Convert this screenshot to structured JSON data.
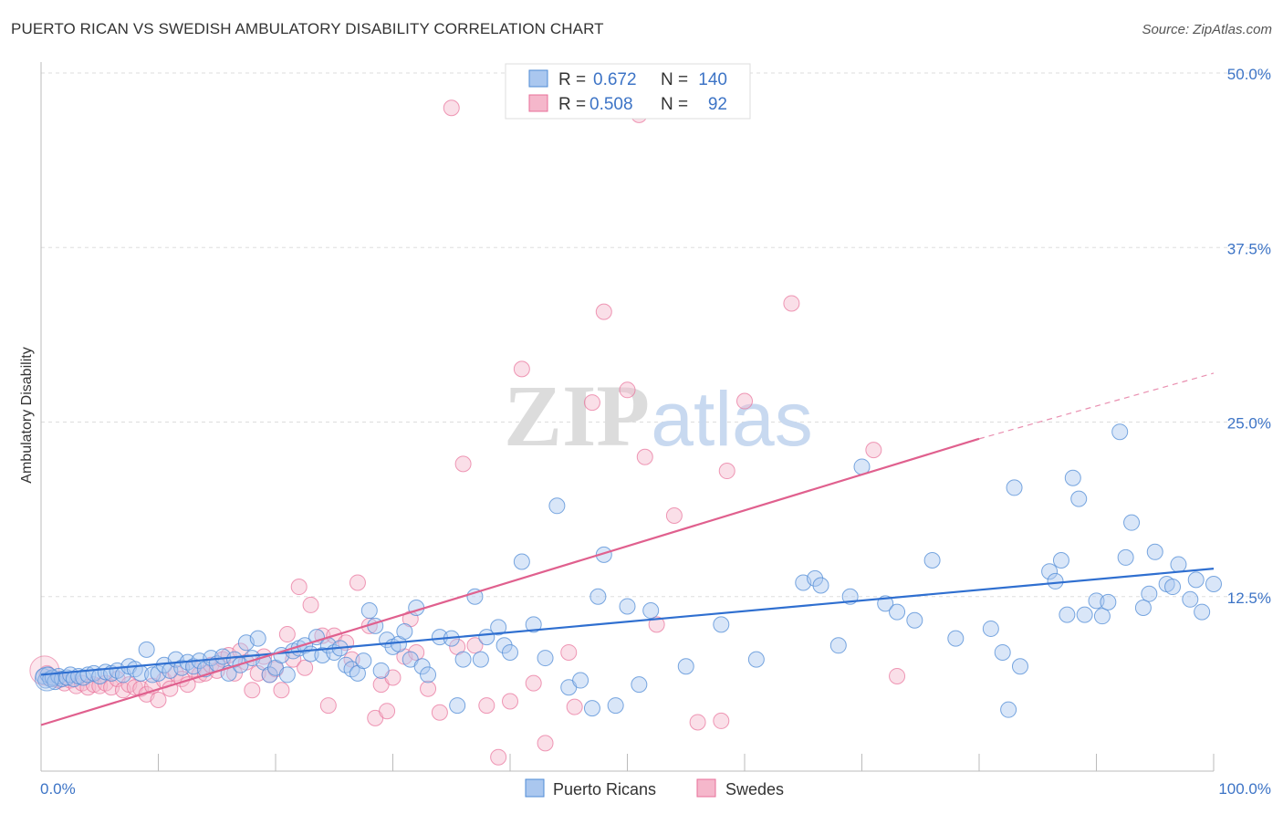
{
  "title": "PUERTO RICAN VS SWEDISH AMBULATORY DISABILITY CORRELATION CHART",
  "source": "Source: ZipAtlas.com",
  "watermark": {
    "zip": "ZIP",
    "atlas": "atlas"
  },
  "colors": {
    "blue": "#4f8bd6",
    "blue_fill": "#aac7ef",
    "blue_line": "#2f6fd0",
    "pink": "#e86f98",
    "pink_fill": "#f5b7cb",
    "pink_line": "#e0608e",
    "axis_text": "#3d74c6",
    "grid": "#dddddd"
  },
  "legend_top": {
    "rows": [
      {
        "r_label": "R =",
        "r_value": "0.672",
        "n_label": "N =",
        "n_value": "140"
      },
      {
        "r_label": "R =",
        "r_value": "0.508",
        "n_label": "N =",
        "n_value": "92"
      }
    ]
  },
  "legend_bottom": {
    "items": [
      "Puerto Ricans",
      "Swedes"
    ]
  },
  "chart_data": {
    "type": "scatter",
    "title": "PUERTO RICAN VS SWEDISH AMBULATORY DISABILITY CORRELATION CHART",
    "xlabel": "",
    "ylabel": "Ambulatory Disability",
    "xlim": [
      0,
      100
    ],
    "ylim": [
      0,
      50
    ],
    "x_tick_labels": [
      "0.0%",
      "100.0%"
    ],
    "y_ticks": [
      12.5,
      25.0,
      37.5,
      50.0
    ],
    "y_tick_labels": [
      "12.5%",
      "25.0%",
      "37.5%",
      "50.0%"
    ],
    "grid": "horizontal dashed",
    "legend_position": "top-center",
    "series": [
      {
        "name": "Puerto Ricans",
        "r": 0.672,
        "n": 140,
        "trend": {
          "x": [
            0,
            100
          ],
          "y": [
            6.9,
            14.5
          ]
        },
        "points": [
          [
            0.2,
            6.8
          ],
          [
            0.4,
            6.5
          ],
          [
            0.6,
            6.9
          ],
          [
            0.8,
            6.6
          ],
          [
            1.0,
            6.7
          ],
          [
            1.2,
            6.4
          ],
          [
            1.5,
            6.8
          ],
          [
            1.8,
            6.6
          ],
          [
            2.2,
            6.7
          ],
          [
            2.5,
            6.9
          ],
          [
            2.8,
            6.6
          ],
          [
            3.2,
            6.8
          ],
          [
            3.6,
            6.7
          ],
          [
            4.0,
            6.9
          ],
          [
            4.5,
            7.0
          ],
          [
            5.0,
            6.8
          ],
          [
            5.5,
            7.1
          ],
          [
            6.0,
            7.0
          ],
          [
            6.5,
            7.2
          ],
          [
            7.0,
            6.9
          ],
          [
            7.5,
            7.5
          ],
          [
            8.0,
            7.3
          ],
          [
            8.5,
            7.0
          ],
          [
            9.0,
            8.7
          ],
          [
            9.5,
            6.9
          ],
          [
            10.0,
            7.0
          ],
          [
            10.5,
            7.6
          ],
          [
            11.0,
            7.2
          ],
          [
            11.5,
            8.0
          ],
          [
            12.0,
            7.4
          ],
          [
            12.5,
            7.8
          ],
          [
            13.0,
            7.5
          ],
          [
            13.5,
            7.9
          ],
          [
            14.0,
            7.3
          ],
          [
            14.5,
            8.1
          ],
          [
            15.0,
            7.7
          ],
          [
            15.5,
            8.2
          ],
          [
            16.0,
            7.0
          ],
          [
            16.5,
            8.0
          ],
          [
            17.0,
            7.6
          ],
          [
            17.5,
            9.2
          ],
          [
            18.0,
            8.1
          ],
          [
            18.5,
            9.5
          ],
          [
            19.0,
            7.8
          ],
          [
            19.5,
            6.9
          ],
          [
            20.0,
            7.4
          ],
          [
            20.5,
            8.3
          ],
          [
            21.0,
            6.9
          ],
          [
            21.5,
            8.6
          ],
          [
            22.0,
            8.8
          ],
          [
            22.5,
            9.0
          ],
          [
            23.0,
            8.4
          ],
          [
            23.5,
            9.6
          ],
          [
            24.0,
            8.3
          ],
          [
            24.5,
            9.0
          ],
          [
            25.0,
            8.5
          ],
          [
            25.5,
            8.8
          ],
          [
            26.0,
            7.6
          ],
          [
            26.5,
            7.3
          ],
          [
            27.0,
            7.0
          ],
          [
            27.5,
            7.9
          ],
          [
            28.0,
            11.5
          ],
          [
            28.5,
            10.4
          ],
          [
            29.0,
            7.2
          ],
          [
            29.5,
            9.4
          ],
          [
            30.0,
            8.9
          ],
          [
            30.5,
            9.1
          ],
          [
            31.0,
            10.0
          ],
          [
            31.5,
            8.0
          ],
          [
            32.0,
            11.7
          ],
          [
            32.5,
            7.5
          ],
          [
            33.0,
            6.9
          ],
          [
            34.0,
            9.6
          ],
          [
            35.0,
            9.5
          ],
          [
            35.5,
            4.7
          ],
          [
            36.0,
            8.0
          ],
          [
            37.0,
            12.5
          ],
          [
            37.5,
            8.0
          ],
          [
            38.0,
            9.6
          ],
          [
            39.0,
            10.3
          ],
          [
            39.5,
            9.0
          ],
          [
            40.0,
            8.5
          ],
          [
            41.0,
            15.0
          ],
          [
            42.0,
            10.5
          ],
          [
            43.0,
            8.1
          ],
          [
            44.0,
            19.0
          ],
          [
            45.0,
            6.0
          ],
          [
            46.0,
            6.5
          ],
          [
            47.0,
            4.5
          ],
          [
            47.5,
            12.5
          ],
          [
            48.0,
            15.5
          ],
          [
            49.0,
            4.7
          ],
          [
            50.0,
            11.8
          ],
          [
            51.0,
            6.2
          ],
          [
            52.0,
            11.5
          ],
          [
            55.0,
            7.5
          ],
          [
            58.0,
            10.5
          ],
          [
            61.0,
            8.0
          ],
          [
            65.0,
            13.5
          ],
          [
            66.0,
            13.8
          ],
          [
            66.5,
            13.3
          ],
          [
            68.0,
            9.0
          ],
          [
            69.0,
            12.5
          ],
          [
            70.0,
            21.8
          ],
          [
            72.0,
            12.0
          ],
          [
            73.0,
            11.4
          ],
          [
            74.5,
            10.8
          ],
          [
            76.0,
            15.1
          ],
          [
            78.0,
            9.5
          ],
          [
            81.0,
            10.2
          ],
          [
            82.0,
            8.5
          ],
          [
            82.5,
            4.4
          ],
          [
            83.0,
            20.3
          ],
          [
            83.5,
            7.5
          ],
          [
            86.0,
            14.3
          ],
          [
            86.5,
            13.6
          ],
          [
            87.0,
            15.1
          ],
          [
            87.5,
            11.2
          ],
          [
            88.0,
            21.0
          ],
          [
            88.5,
            19.5
          ],
          [
            89.0,
            11.2
          ],
          [
            90.0,
            12.2
          ],
          [
            90.5,
            11.1
          ],
          [
            91.0,
            12.1
          ],
          [
            92.0,
            24.3
          ],
          [
            92.5,
            15.3
          ],
          [
            93.0,
            17.8
          ],
          [
            94.0,
            11.7
          ],
          [
            94.5,
            12.7
          ],
          [
            95.0,
            15.7
          ],
          [
            96.0,
            13.4
          ],
          [
            96.5,
            13.2
          ],
          [
            97.0,
            14.8
          ],
          [
            98.0,
            12.3
          ],
          [
            98.5,
            13.7
          ],
          [
            99.0,
            11.4
          ],
          [
            100.0,
            13.4
          ]
        ]
      },
      {
        "name": "Swedes",
        "r": 0.508,
        "n": 92,
        "trend": {
          "x": [
            0,
            80
          ],
          "y": [
            3.3,
            23.8
          ]
        },
        "trend_extension": {
          "x": [
            80,
            100
          ],
          "y": [
            23.8,
            28.5
          ]
        },
        "points": [
          [
            0.5,
            7.0
          ],
          [
            1.0,
            6.6
          ],
          [
            1.5,
            6.5
          ],
          [
            2.0,
            6.3
          ],
          [
            2.5,
            6.5
          ],
          [
            3.0,
            6.1
          ],
          [
            3.5,
            6.3
          ],
          [
            4.0,
            6.0
          ],
          [
            4.5,
            6.2
          ],
          [
            5.0,
            6.1
          ],
          [
            5.5,
            6.3
          ],
          [
            6.0,
            6.0
          ],
          [
            6.5,
            6.6
          ],
          [
            7.0,
            5.8
          ],
          [
            7.5,
            6.2
          ],
          [
            8.0,
            6.0
          ],
          [
            8.5,
            5.9
          ],
          [
            9.0,
            5.5
          ],
          [
            9.5,
            6.1
          ],
          [
            10.0,
            5.1
          ],
          [
            10.5,
            6.5
          ],
          [
            11.0,
            5.9
          ],
          [
            11.5,
            7.0
          ],
          [
            12.0,
            6.6
          ],
          [
            12.5,
            6.2
          ],
          [
            13.0,
            7.3
          ],
          [
            13.5,
            6.9
          ],
          [
            14.0,
            7.0
          ],
          [
            14.5,
            7.6
          ],
          [
            15.0,
            7.2
          ],
          [
            15.5,
            8.0
          ],
          [
            16.0,
            8.3
          ],
          [
            16.5,
            7.0
          ],
          [
            17.0,
            8.6
          ],
          [
            17.5,
            7.8
          ],
          [
            18.0,
            5.8
          ],
          [
            18.5,
            7.0
          ],
          [
            19.0,
            8.2
          ],
          [
            19.5,
            6.9
          ],
          [
            20.0,
            7.3
          ],
          [
            20.5,
            5.8
          ],
          [
            21.0,
            9.8
          ],
          [
            21.5,
            8.0
          ],
          [
            22.0,
            13.2
          ],
          [
            22.5,
            7.4
          ],
          [
            23.0,
            11.9
          ],
          [
            24.0,
            9.7
          ],
          [
            24.5,
            4.7
          ],
          [
            25.0,
            9.7
          ],
          [
            26.0,
            9.2
          ],
          [
            26.5,
            8.0
          ],
          [
            27.0,
            13.5
          ],
          [
            28.0,
            10.4
          ],
          [
            28.5,
            3.8
          ],
          [
            29.0,
            6.2
          ],
          [
            29.5,
            4.3
          ],
          [
            30.0,
            6.7
          ],
          [
            31.0,
            8.2
          ],
          [
            31.5,
            10.9
          ],
          [
            32.0,
            8.5
          ],
          [
            33.0,
            5.9
          ],
          [
            34.0,
            4.2
          ],
          [
            35.0,
            47.5
          ],
          [
            35.5,
            8.9
          ],
          [
            36.0,
            22.0
          ],
          [
            37.0,
            9.0
          ],
          [
            38.0,
            4.7
          ],
          [
            39.0,
            1.0
          ],
          [
            40.0,
            5.0
          ],
          [
            41.0,
            28.8
          ],
          [
            42.0,
            6.3
          ],
          [
            43.0,
            2.0
          ],
          [
            45.0,
            8.5
          ],
          [
            45.5,
            4.6
          ],
          [
            47.0,
            26.4
          ],
          [
            48.0,
            32.9
          ],
          [
            50.0,
            27.3
          ],
          [
            51.0,
            47.0
          ],
          [
            51.5,
            22.5
          ],
          [
            52.5,
            10.5
          ],
          [
            54.0,
            18.3
          ],
          [
            56.0,
            3.5
          ],
          [
            58.0,
            3.6
          ],
          [
            58.5,
            21.5
          ],
          [
            60.0,
            26.5
          ],
          [
            64.0,
            33.5
          ],
          [
            71.0,
            23.0
          ],
          [
            73.0,
            6.8
          ]
        ]
      }
    ]
  }
}
